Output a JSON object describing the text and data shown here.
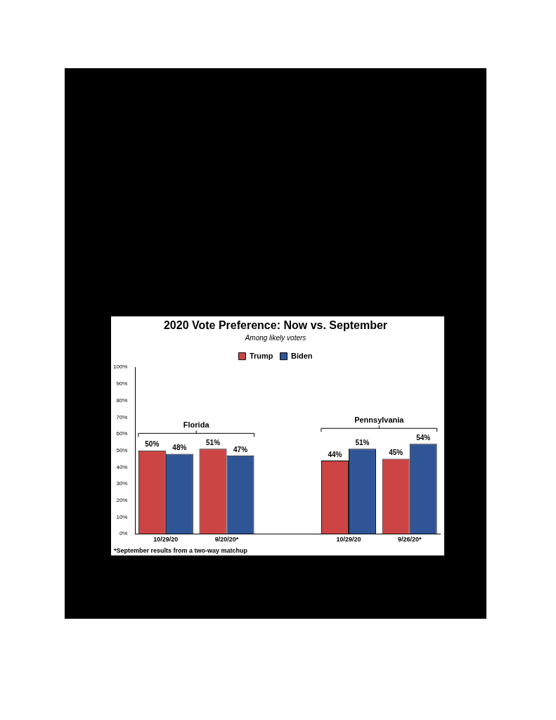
{
  "chart_data": {
    "type": "bar",
    "title": "2020 Vote Preference: Now vs. September",
    "subtitle": "Among likely voters",
    "categories": [
      "10/29/20",
      "9/20/20*",
      null,
      "10/29/20",
      "9/26/20*"
    ],
    "series": [
      {
        "name": "Trump",
        "color": "#cc4444",
        "values": [
          50,
          51,
          null,
          44,
          45
        ],
        "value_labels": [
          "50%",
          "51%",
          null,
          "44%",
          "45%"
        ]
      },
      {
        "name": "Biden",
        "color": "#2f5597",
        "values": [
          48,
          47,
          null,
          51,
          54
        ],
        "value_labels": [
          "48%",
          "47%",
          null,
          "51%",
          "54%"
        ]
      }
    ],
    "ylim": [
      0,
      100
    ],
    "yticks": [
      {
        "value": 0,
        "label": "0%"
      },
      {
        "value": 10,
        "label": "10%"
      },
      {
        "value": 20,
        "label": "20%"
      },
      {
        "value": 30,
        "label": "30%"
      },
      {
        "value": 40,
        "label": "40%"
      },
      {
        "value": 50,
        "label": "50%"
      },
      {
        "value": 60,
        "label": "60%"
      },
      {
        "value": 70,
        "label": "70%"
      },
      {
        "value": 80,
        "label": "80%"
      },
      {
        "value": 90,
        "label": "90%"
      },
      {
        "value": 100,
        "label": "100%"
      }
    ],
    "grid": false,
    "legend": "top",
    "annotations": [
      "Florida",
      "Pennsylvania",
      "*September results from a two-way matchup"
    ]
  }
}
